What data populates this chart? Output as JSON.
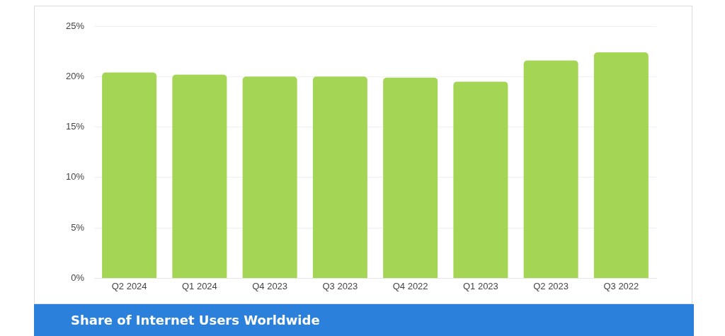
{
  "chart_data": {
    "type": "bar",
    "title": "Share of Internet Users Worldwide",
    "categories": [
      "Q2 2024",
      "Q1 2024",
      "Q4 2023",
      "Q3 2023",
      "Q4 2022",
      "Q1 2023",
      "Q2 2023",
      "Q3 2022"
    ],
    "values": [
      20.4,
      20.2,
      20.0,
      20.0,
      19.9,
      19.5,
      21.6,
      22.4
    ],
    "color": "#a5d555",
    "ylim": [
      0,
      25
    ],
    "yticks": [
      {
        "value": 0,
        "label": "0%"
      },
      {
        "value": 5,
        "label": "5%"
      },
      {
        "value": 10,
        "label": "10%"
      },
      {
        "value": 15,
        "label": "15%"
      },
      {
        "value": 20,
        "label": "20%"
      },
      {
        "value": 25,
        "label": "25%"
      }
    ],
    "grid": "y"
  }
}
